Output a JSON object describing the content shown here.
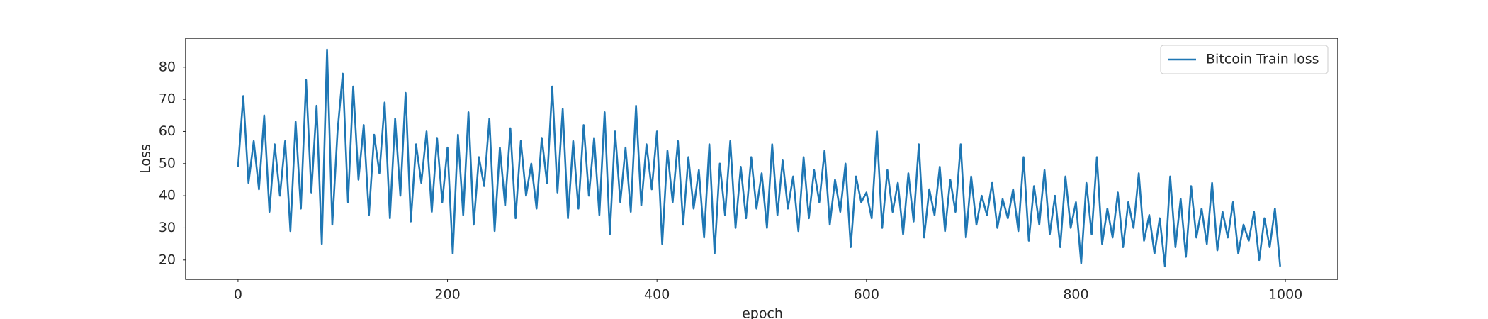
{
  "chart_data": {
    "type": "line",
    "xlabel": "epoch",
    "ylabel": "Loss",
    "x": [
      0,
      5,
      10,
      15,
      20,
      25,
      30,
      35,
      40,
      45,
      50,
      55,
      60,
      65,
      70,
      75,
      80,
      85,
      90,
      95,
      100,
      105,
      110,
      115,
      120,
      125,
      130,
      135,
      140,
      145,
      150,
      155,
      160,
      165,
      170,
      175,
      180,
      185,
      190,
      195,
      200,
      205,
      210,
      215,
      220,
      225,
      230,
      235,
      240,
      245,
      250,
      255,
      260,
      265,
      270,
      275,
      280,
      285,
      290,
      295,
      300,
      305,
      310,
      315,
      320,
      325,
      330,
      335,
      340,
      345,
      350,
      355,
      360,
      365,
      370,
      375,
      380,
      385,
      390,
      395,
      400,
      405,
      410,
      415,
      420,
      425,
      430,
      435,
      440,
      445,
      450,
      455,
      460,
      465,
      470,
      475,
      480,
      485,
      490,
      495,
      500,
      505,
      510,
      515,
      520,
      525,
      530,
      535,
      540,
      545,
      550,
      555,
      560,
      565,
      570,
      575,
      580,
      585,
      590,
      595,
      600,
      605,
      610,
      615,
      620,
      625,
      630,
      635,
      640,
      645,
      650,
      655,
      660,
      665,
      670,
      675,
      680,
      685,
      690,
      695,
      700,
      705,
      710,
      715,
      720,
      725,
      730,
      735,
      740,
      745,
      750,
      755,
      760,
      765,
      770,
      775,
      780,
      785,
      790,
      795,
      800,
      805,
      810,
      815,
      820,
      825,
      830,
      835,
      840,
      845,
      850,
      855,
      860,
      865,
      870,
      875,
      880,
      885,
      890,
      895,
      900,
      905,
      910,
      915,
      920,
      925,
      930,
      935,
      940,
      945,
      950,
      955,
      960,
      965,
      970,
      975,
      980,
      985,
      990,
      995
    ],
    "series": [
      {
        "name": "Bitcoin Train loss",
        "color": "#1f77b4",
        "values": [
          49,
          71,
          44,
          57,
          42,
          65,
          35,
          56,
          40,
          57,
          29,
          63,
          36,
          76,
          41,
          68,
          25,
          85.5,
          31,
          60,
          78,
          38,
          74,
          45,
          62,
          34,
          59,
          47,
          69,
          33,
          64,
          40,
          72,
          32,
          56,
          44,
          60,
          35,
          58,
          38,
          55,
          22,
          59,
          34,
          66,
          31,
          52,
          43,
          64,
          29,
          55,
          37,
          61,
          33,
          57,
          40,
          50,
          36,
          58,
          44,
          74,
          41,
          67,
          33,
          57,
          36,
          62,
          40,
          58,
          34,
          66,
          28,
          60,
          38,
          55,
          35,
          68,
          37,
          56,
          42,
          60,
          25,
          54,
          38,
          57,
          31,
          52,
          36,
          48,
          27,
          56,
          22,
          50,
          34,
          57,
          30,
          49,
          33,
          52,
          36,
          47,
          30,
          56,
          34,
          51,
          36,
          46,
          29,
          52,
          33,
          48,
          38,
          54,
          31,
          45,
          35,
          50,
          24,
          46,
          38,
          41,
          33,
          60,
          30,
          48,
          35,
          44,
          28,
          47,
          32,
          56,
          27,
          42,
          34,
          49,
          29,
          45,
          35,
          56,
          27,
          46,
          31,
          40,
          34,
          44,
          30,
          39,
          33,
          42,
          29,
          52,
          26,
          43,
          31,
          48,
          28,
          40,
          24,
          46,
          30,
          38,
          19,
          44,
          28,
          52,
          25,
          36,
          27,
          41,
          24,
          38,
          30,
          47,
          26,
          34,
          22,
          33,
          18,
          46,
          24,
          39,
          21,
          43,
          27,
          36,
          25,
          44,
          23,
          35,
          27,
          38,
          22,
          31,
          26,
          35,
          20,
          33,
          24,
          36,
          18
        ]
      }
    ],
    "xlim": [
      -50,
      1050
    ],
    "ylim": [
      14,
      89
    ],
    "xticks": [
      0,
      200,
      400,
      600,
      800,
      1000
    ],
    "yticks": [
      20,
      30,
      40,
      50,
      60,
      70,
      80
    ],
    "grid": false,
    "legend": "upper right"
  }
}
